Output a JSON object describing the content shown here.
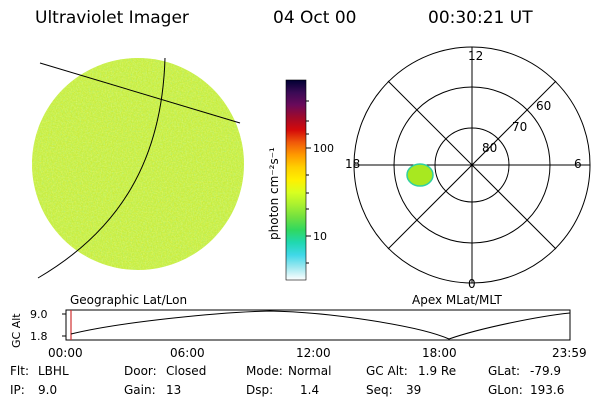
{
  "header": {
    "instrument": "Ultraviolet Imager",
    "date": "04 Oct 00",
    "time": "00:30:21 UT"
  },
  "colorbar": {
    "unit_label": "photon cm⁻²s⁻¹",
    "ticks": [
      "100",
      "10"
    ],
    "colors": [
      "#000033",
      "#3a0a55",
      "#6a0a5a",
      "#a00a2a",
      "#d40a0a",
      "#f05a0a",
      "#ff9a00",
      "#ffd000",
      "#fff000",
      "#d8ff20",
      "#a8f030",
      "#70e040",
      "#30d860",
      "#20d8b0",
      "#40d8e8",
      "#a0e8f0",
      "#ffffff"
    ]
  },
  "geo_panel": {
    "label": "Geographic Lat/Lon",
    "fill_colors": [
      "#c8ec3c",
      "#f0f040",
      "#88dc48"
    ]
  },
  "polar_panel": {
    "label": "Apex MLat/MLT",
    "mlt_labels": {
      "top": "12",
      "right": "6",
      "bottom": "0",
      "left": "18"
    },
    "lat_labels": [
      "60",
      "70",
      "80"
    ],
    "blob_color": "#a8e820"
  },
  "timeline": {
    "ylabel": "GC Alt",
    "y_top": "9.0",
    "y_bottom": "1.8",
    "x_ticks": [
      "00:00",
      "06:00",
      "12:00",
      "18:00",
      "23:59"
    ],
    "marker_color": "#d03030"
  },
  "status": {
    "row1": [
      {
        "label": "Flt:",
        "value": "LBHL"
      },
      {
        "label": "Door:",
        "value": "Closed"
      },
      {
        "label": "Mode:",
        "value": "Normal"
      },
      {
        "label": "GC Alt:",
        "value": "1.9 Re"
      },
      {
        "label": "GLat:",
        "value": "-79.9"
      }
    ],
    "row2": [
      {
        "label": "IP:",
        "value": "9.0"
      },
      {
        "label": "Gain:",
        "value": "13"
      },
      {
        "label": "Dsp:",
        "value": "1.4"
      },
      {
        "label": "Seq:",
        "value": "39"
      },
      {
        "label": "GLon:",
        "value": "193.6"
      }
    ]
  }
}
